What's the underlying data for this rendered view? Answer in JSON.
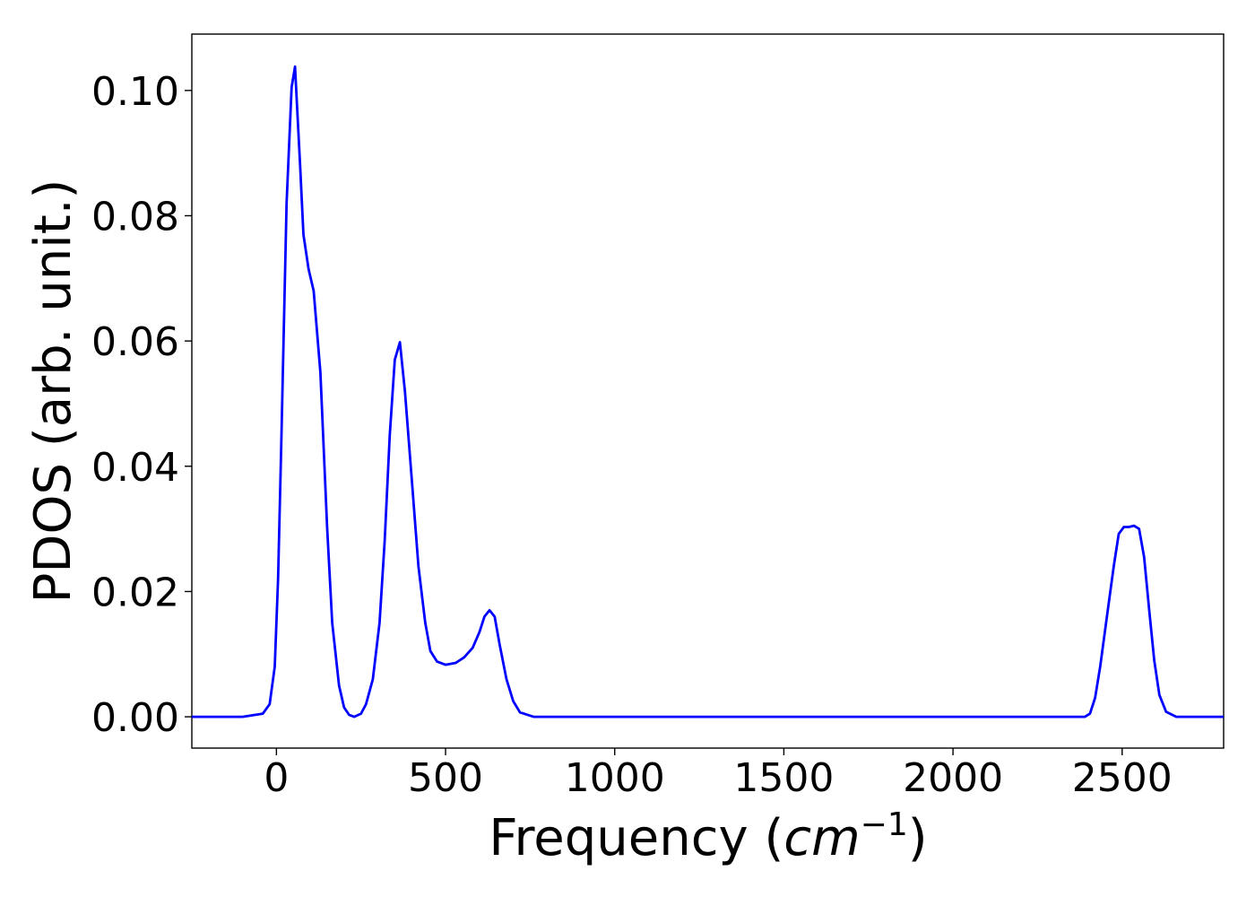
{
  "chart_data": {
    "type": "line",
    "title": "",
    "xlabel": "Frequency (",
    "xlabel_unit": "cm",
    "xlabel_exponent": "−1",
    "xlabel_close": ")",
    "ylabel": "PDOS (arb. unit.)",
    "xlim": [
      -250,
      2800
    ],
    "ylim": [
      -0.005,
      0.109
    ],
    "xticks": [
      0,
      500,
      1000,
      1500,
      2000,
      2500
    ],
    "xtick_labels": [
      "0",
      "500",
      "1000",
      "1500",
      "2000",
      "2500"
    ],
    "yticks": [
      0.0,
      0.02,
      0.04,
      0.06,
      0.08,
      0.1
    ],
    "ytick_labels": [
      "0.00",
      "0.02",
      "0.04",
      "0.06",
      "0.08",
      "0.10"
    ],
    "grid": false,
    "series": [
      {
        "color": "#0000ff",
        "x": [
          -250,
          -100,
          -40,
          -20,
          -5,
          5,
          15,
          30,
          45,
          55,
          70,
          80,
          95,
          110,
          130,
          150,
          165,
          185,
          200,
          215,
          230,
          250,
          265,
          285,
          305,
          320,
          335,
          350,
          365,
          380,
          400,
          420,
          440,
          455,
          475,
          500,
          530,
          555,
          580,
          600,
          615,
          630,
          645,
          660,
          680,
          700,
          720,
          760,
          1500,
          2300,
          2390,
          2405,
          2420,
          2435,
          2455,
          2475,
          2490,
          2505,
          2520,
          2535,
          2550,
          2565,
          2580,
          2595,
          2610,
          2630,
          2660,
          2800
        ],
        "y": [
          0.0,
          0.0,
          0.0005,
          0.002,
          0.008,
          0.022,
          0.045,
          0.082,
          0.1005,
          0.1038,
          0.088,
          0.077,
          0.0715,
          0.068,
          0.055,
          0.03,
          0.015,
          0.005,
          0.0015,
          0.0003,
          0.0,
          0.0005,
          0.002,
          0.006,
          0.015,
          0.028,
          0.045,
          0.057,
          0.0598,
          0.052,
          0.038,
          0.024,
          0.015,
          0.0105,
          0.0088,
          0.0083,
          0.0086,
          0.0095,
          0.011,
          0.0135,
          0.016,
          0.017,
          0.016,
          0.0115,
          0.006,
          0.0025,
          0.0007,
          0.0,
          0.0,
          0.0,
          0.0,
          0.0005,
          0.003,
          0.008,
          0.016,
          0.024,
          0.0292,
          0.0303,
          0.0303,
          0.0305,
          0.03,
          0.0255,
          0.017,
          0.009,
          0.0035,
          0.0008,
          0.0,
          0.0
        ]
      }
    ]
  }
}
